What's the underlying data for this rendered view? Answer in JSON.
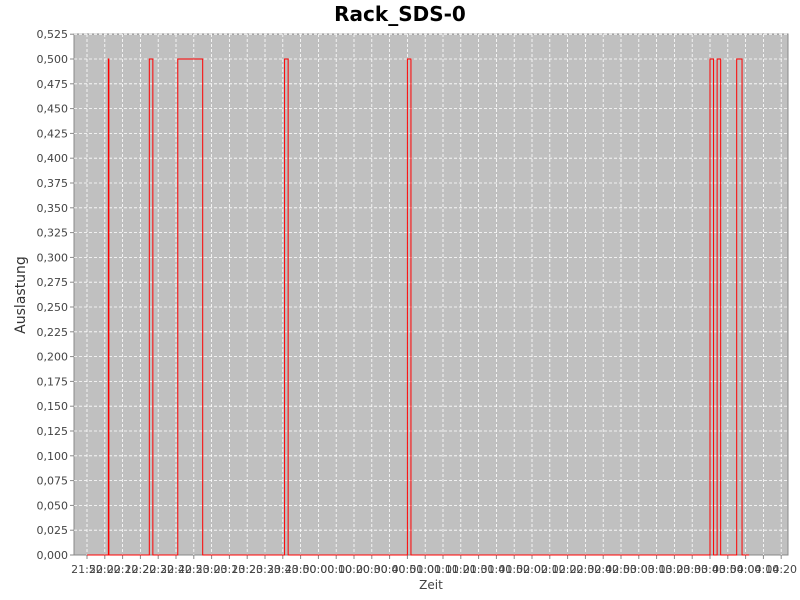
{
  "chart_data": {
    "type": "line",
    "title": "Rack_SDS-0",
    "xlabel": "Zeit",
    "ylabel": "Auslastung",
    "ylim": [
      0,
      0.525
    ],
    "y_ticks": [
      "0,000",
      "0,025",
      "0,050",
      "0,075",
      "0,100",
      "0,125",
      "0,150",
      "0,175",
      "0,200",
      "0,225",
      "0,250",
      "0,275",
      "0,300",
      "0,325",
      "0,350",
      "0,375",
      "0,400",
      "0,425",
      "0,450",
      "0,475",
      "0,500",
      "0,525"
    ],
    "x_ticks": [
      "21:50",
      "22:00",
      "22:10",
      "22:20",
      "22:30",
      "22:40",
      "22:50",
      "23:00",
      "23:10",
      "23:20",
      "23:30",
      "23:40",
      "23:50",
      "00:00",
      "00:10",
      "00:20",
      "00:30",
      "00:40",
      "00:50",
      "01:00",
      "01:10",
      "01:20",
      "01:30",
      "01:40",
      "01:50",
      "02:00",
      "02:10",
      "02:20",
      "02:30",
      "02:40",
      "02:50",
      "03:00",
      "03:10",
      "03:20",
      "03:30",
      "03:40",
      "03:50",
      "04:00",
      "04:10",
      "04:20"
    ],
    "x_range_minutes": [
      0,
      390
    ],
    "grid": true,
    "background": "#c0c0c0",
    "series": [
      {
        "name": "Rack_SDS-0",
        "color": "#ff0000",
        "x_minutes": [
          0,
          12.0,
          12.0,
          12.3,
          12.3,
          35.0,
          35.0,
          37.0,
          37.0,
          51.0,
          51.0,
          65.0,
          65.0,
          111.0,
          111.0,
          113.0,
          113.0,
          180.0,
          180.0,
          182.0,
          182.0,
          350.0,
          350.0,
          352.0,
          352.0,
          354.0,
          354.0,
          356.0,
          356.0,
          365.0,
          365.0,
          368.0,
          368.0,
          372.0
        ],
        "values": [
          0,
          0,
          0.5,
          0.5,
          0,
          0,
          0.5,
          0.5,
          0,
          0,
          0.5,
          0.5,
          0,
          0,
          0.5,
          0.5,
          0,
          0,
          0.5,
          0.5,
          0,
          0,
          0.5,
          0.5,
          0,
          0,
          0.5,
          0.5,
          0,
          0,
          0.5,
          0.5,
          0,
          0
        ]
      }
    ]
  }
}
